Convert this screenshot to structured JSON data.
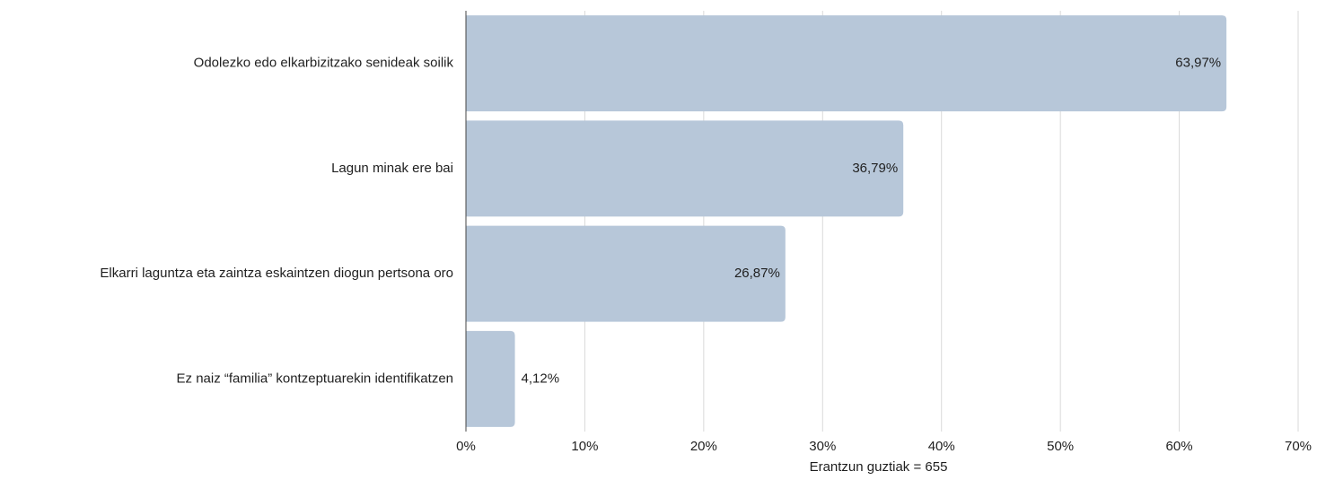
{
  "chart_data": {
    "type": "bar",
    "orientation": "horizontal",
    "categories": [
      "Odolezko edo elkarbizitzako senideak soilik",
      "Lagun minak ere bai",
      "Elkarri laguntza eta zaintza eskaintzen diogun pertsona oro",
      "Ez naiz “familia” kontzeptuarekin identifikatzen"
    ],
    "values": [
      63.97,
      36.79,
      26.87,
      4.12
    ],
    "value_labels": [
      "63,97%",
      "36,79%",
      "26,87%",
      "4,12%"
    ],
    "xlim": [
      0,
      70
    ],
    "x_ticks": [
      0,
      10,
      20,
      30,
      40,
      50,
      60,
      70
    ],
    "x_tick_labels": [
      "0%",
      "10%",
      "20%",
      "30%",
      "40%",
      "50%",
      "60%",
      "70%"
    ],
    "xlabel": "Erantzun guztiak = 655",
    "grid": "vertical",
    "colors": {
      "bar": "#b7c7d9",
      "grid": "#d9d9d9",
      "axis": "#444444",
      "text": "#1f1f1f"
    }
  }
}
